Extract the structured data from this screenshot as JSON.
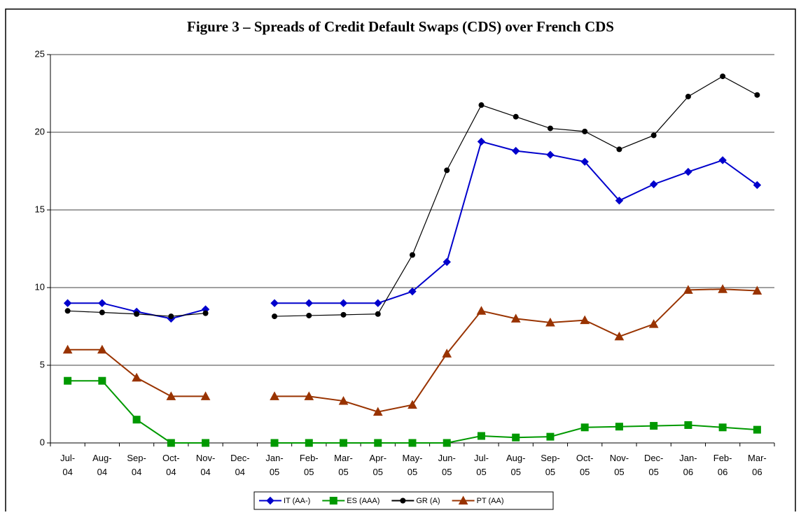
{
  "chart_data": {
    "type": "line",
    "title": "Figure 3 – Spreads of Credit Default Swaps (CDS) over French CDS",
    "categories": [
      "Jul-04",
      "Aug-04",
      "Sep-04",
      "Oct-04",
      "Nov-04",
      "Dec-04",
      "Jan-05",
      "Feb-05",
      "Mar-05",
      "Apr-05",
      "May-05",
      "Jun-05",
      "Jul-05",
      "Aug-05",
      "Sep-05",
      "Oct-05",
      "Nov-05",
      "Dec-05",
      "Jan-06",
      "Feb-06",
      "Mar-06"
    ],
    "series": [
      {
        "name": "IT (AA-)",
        "color": "#0000cc",
        "marker": "diamond",
        "values": [
          9,
          9,
          8.45,
          8.0,
          8.6,
          null,
          9,
          9,
          9,
          9,
          9.75,
          11.65,
          19.4,
          18.8,
          18.55,
          18.1,
          15.6,
          16.65,
          17.45,
          18.2,
          16.6
        ]
      },
      {
        "name": "ES (AAA)",
        "color": "#009900",
        "marker": "square",
        "values": [
          4,
          4,
          1.5,
          0,
          0,
          null,
          0,
          0,
          0,
          0,
          0,
          0,
          0.45,
          0.35,
          0.4,
          1.0,
          1.05,
          1.1,
          1.15,
          1.0,
          0.85
        ]
      },
      {
        "name": "GR (A)",
        "color": "#000000",
        "marker": "circle",
        "values": [
          8.5,
          8.4,
          8.3,
          8.15,
          8.35,
          null,
          8.15,
          8.2,
          8.25,
          8.3,
          12.1,
          17.55,
          21.75,
          21.0,
          20.25,
          20.05,
          18.9,
          19.8,
          22.3,
          23.6,
          22.4
        ]
      },
      {
        "name": "PT (AA)",
        "color": "#993300",
        "marker": "triangle",
        "values": [
          6,
          6,
          4.2,
          3,
          3,
          null,
          3,
          3,
          2.7,
          2,
          2.45,
          5.75,
          8.5,
          8.0,
          7.75,
          7.9,
          6.85,
          7.65,
          9.85,
          9.9,
          9.8
        ]
      }
    ],
    "ylim": [
      0,
      25
    ],
    "yticks": [
      0,
      5,
      10,
      15,
      20,
      25
    ],
    "grid": true,
    "legend": "bottom"
  }
}
